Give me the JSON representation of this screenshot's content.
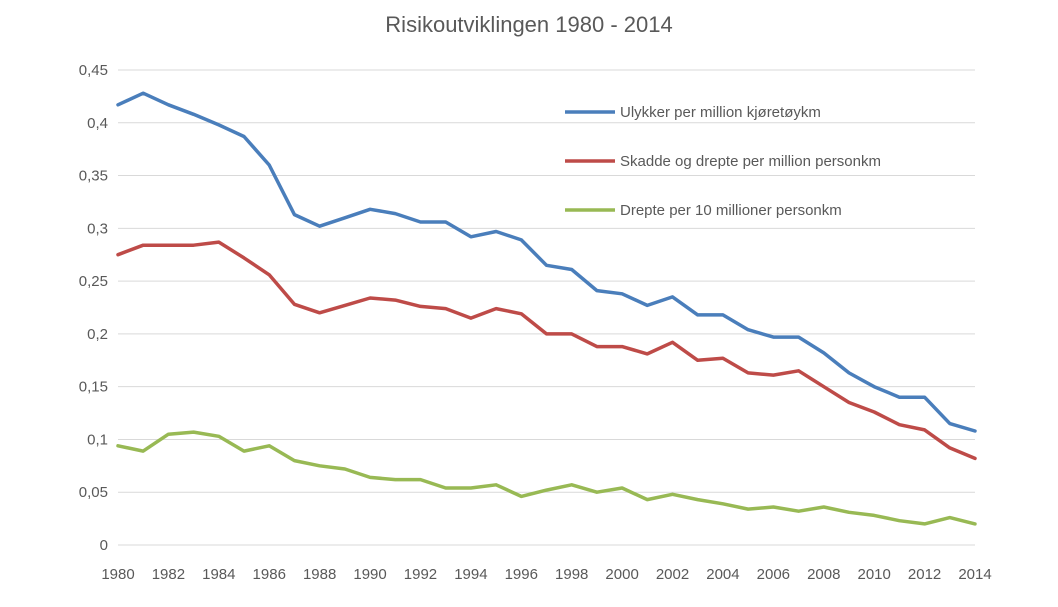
{
  "chart_data": {
    "type": "line",
    "title": "Risikoutviklingen 1980 - 2014",
    "xlabel": "",
    "ylabel": "",
    "ylim": [
      0,
      0.45
    ],
    "yticks": [
      0,
      0.05,
      0.1,
      0.15,
      0.2,
      0.25,
      0.3,
      0.35,
      0.4,
      0.45
    ],
    "ytick_labels": [
      "0",
      "0,05",
      "0,1",
      "0,15",
      "0,2",
      "0,25",
      "0,3",
      "0,35",
      "0,4",
      "0,45"
    ],
    "xtick_labels": [
      "1980",
      "1982",
      "1984",
      "1986",
      "1988",
      "1990",
      "1992",
      "1994",
      "1996",
      "1998",
      "2000",
      "2002",
      "2004",
      "2006",
      "2008",
      "2010",
      "2012",
      "2014"
    ],
    "grid": true,
    "legend_position": "top-right",
    "x": [
      1980,
      1981,
      1982,
      1983,
      1984,
      1985,
      1986,
      1987,
      1988,
      1989,
      1990,
      1991,
      1992,
      1993,
      1994,
      1995,
      1996,
      1997,
      1998,
      1999,
      2000,
      2001,
      2002,
      2003,
      2004,
      2005,
      2006,
      2007,
      2008,
      2009,
      2010,
      2011,
      2012,
      2013,
      2014
    ],
    "series": [
      {
        "name": "Ulykker per million kjøretøykm",
        "color": "#4a7ebb",
        "values": [
          0.417,
          0.428,
          0.417,
          0.408,
          0.398,
          0.387,
          0.36,
          0.313,
          0.302,
          0.31,
          0.318,
          0.314,
          0.306,
          0.306,
          0.292,
          0.297,
          0.289,
          0.265,
          0.261,
          0.241,
          0.238,
          0.227,
          0.235,
          0.218,
          0.218,
          0.204,
          0.197,
          0.197,
          0.182,
          0.163,
          0.15,
          0.14,
          0.14,
          0.115,
          0.108
        ]
      },
      {
        "name": "Skadde og drepte per million personkm",
        "color": "#be4b48",
        "values": [
          0.275,
          0.284,
          0.284,
          0.284,
          0.287,
          0.272,
          0.256,
          0.228,
          0.22,
          0.227,
          0.234,
          0.232,
          0.226,
          0.224,
          0.215,
          0.224,
          0.219,
          0.2,
          0.2,
          0.188,
          0.188,
          0.181,
          0.192,
          0.175,
          0.177,
          0.163,
          0.161,
          0.165,
          0.15,
          0.135,
          0.126,
          0.114,
          0.109,
          0.092,
          0.082
        ]
      },
      {
        "name": "Drepte per 10 millioner personkm",
        "color": "#98b954",
        "values": [
          0.094,
          0.089,
          0.105,
          0.107,
          0.103,
          0.089,
          0.094,
          0.08,
          0.075,
          0.072,
          0.064,
          0.062,
          0.062,
          0.054,
          0.054,
          0.057,
          0.046,
          0.052,
          0.057,
          0.05,
          0.054,
          0.043,
          0.048,
          0.043,
          0.039,
          0.034,
          0.036,
          0.032,
          0.036,
          0.031,
          0.028,
          0.023,
          0.02,
          0.026,
          0.02
        ]
      }
    ]
  }
}
